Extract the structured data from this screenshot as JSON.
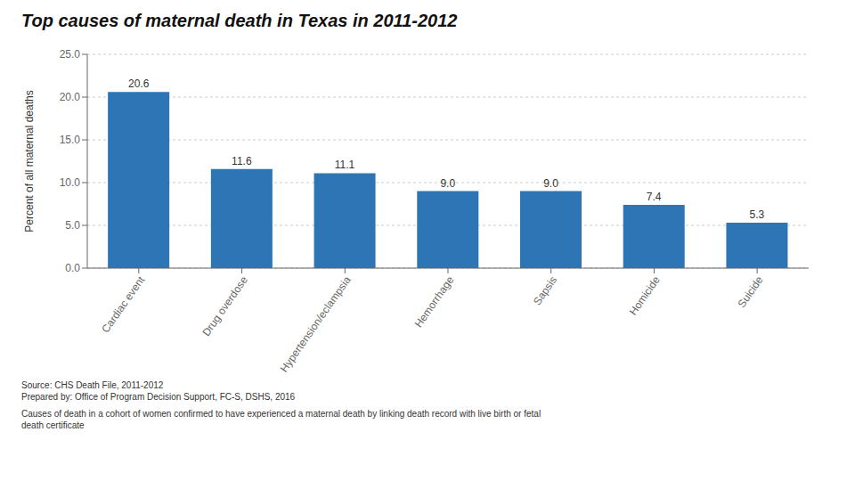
{
  "chart_data": {
    "type": "bar",
    "title": "Top causes of maternal death in Texas in 2011-2012",
    "categories": [
      "Cardiac event",
      "Drug overdose",
      "Hypertension/eclampsia",
      "Hemorrhage",
      "Sapsis",
      "Homicide",
      "Suicide"
    ],
    "values": [
      20.6,
      11.6,
      11.1,
      9.0,
      9.0,
      7.4,
      5.3
    ],
    "value_labels": [
      "20.6",
      "11.6",
      "11.1",
      "9.0",
      "9.0",
      "7.4",
      "5.3"
    ],
    "data_labels": true,
    "color": "#2E75B6",
    "ylabel": "Percent of all maternal deaths",
    "ylim": [
      0,
      25
    ],
    "yticks": [
      {
        "value": 0,
        "label": "0.0"
      },
      {
        "value": 5,
        "label": "5.0"
      },
      {
        "value": 10,
        "label": "10.0"
      },
      {
        "value": 15,
        "label": "15.0"
      },
      {
        "value": 20,
        "label": "20.0"
      },
      {
        "value": 25,
        "label": "25.0"
      }
    ],
    "grid": true,
    "annotations": [
      "Source: CHS Death File, 2011-2012",
      "Prepared by: Office of Program Decision Support, FC-S, DSHS, 2016",
      "Causes of death in a cohort of women confirmed to have experienced a maternal death by linking death record with live birth or fetal\ndeath certificate"
    ]
  }
}
